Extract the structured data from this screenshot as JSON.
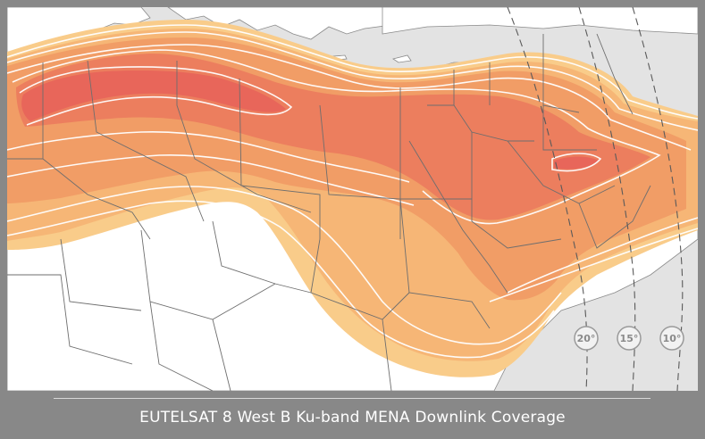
{
  "caption": "EUTELSAT 8 West B Ku-band MENA Downlink Coverage",
  "elevation_markers": [
    {
      "label": "20°"
    },
    {
      "label": "15°"
    },
    {
      "label": "10°"
    }
  ],
  "colors": {
    "background": "#888888",
    "sea": "#e3e3e3",
    "land": "#ffffff",
    "zone_outer": "#f9cc8a",
    "zone_2": "#f6b676",
    "zone_3": "#f19d66",
    "zone_core": "#ec7e5e",
    "contour": "#ffffff",
    "border": "#6e6e6e"
  }
}
